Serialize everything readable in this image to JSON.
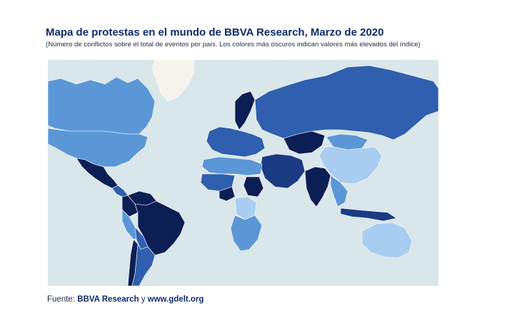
{
  "header": {
    "title": "Mapa de protestas en el mundo de BBVA Research, Marzo de 2020",
    "subtitle": "(Número de conflictos sobre el total de eventos por país. Los colores más oscuros indican valores más elevados del índice)"
  },
  "map": {
    "palette": {
      "ocean": "#d9e6ea",
      "no_data": "#f6f3ee",
      "level_1": "#a9cdf0",
      "level_2": "#5b97d6",
      "level_3": "#2f5fae",
      "level_4": "#1a3a82",
      "level_5": "#0c1f55"
    },
    "regions": [
      {
        "name": "greenland",
        "level": "no_data"
      },
      {
        "name": "canada",
        "level": "level_2"
      },
      {
        "name": "united-states",
        "level": "level_2"
      },
      {
        "name": "mexico",
        "level": "level_5"
      },
      {
        "name": "central-america",
        "level": "level_3"
      },
      {
        "name": "colombia",
        "level": "level_5"
      },
      {
        "name": "venezuela",
        "level": "level_5"
      },
      {
        "name": "brazil",
        "level": "level_5"
      },
      {
        "name": "peru",
        "level": "level_2"
      },
      {
        "name": "bolivia",
        "level": "level_3"
      },
      {
        "name": "chile",
        "level": "level_5"
      },
      {
        "name": "argentina",
        "level": "level_3"
      },
      {
        "name": "scandinavia",
        "level": "level_5"
      },
      {
        "name": "western-europe",
        "level": "level_3"
      },
      {
        "name": "russia",
        "level": "level_3"
      },
      {
        "name": "kazakhstan",
        "level": "level_5"
      },
      {
        "name": "mongolia",
        "level": "level_2"
      },
      {
        "name": "china",
        "level": "level_1"
      },
      {
        "name": "middle-east",
        "level": "level_4"
      },
      {
        "name": "india",
        "level": "level_5"
      },
      {
        "name": "southeast-asia",
        "level": "level_2"
      },
      {
        "name": "indonesia",
        "level": "level_4"
      },
      {
        "name": "australia",
        "level": "level_1"
      },
      {
        "name": "north-africa",
        "level": "level_2"
      },
      {
        "name": "sahel",
        "level": "level_3"
      },
      {
        "name": "nigeria",
        "level": "level_5"
      },
      {
        "name": "sudan",
        "level": "level_5"
      },
      {
        "name": "congo",
        "level": "level_1"
      },
      {
        "name": "southern-africa",
        "level": "level_2"
      }
    ]
  },
  "footer": {
    "source_prefix": "Fuente: ",
    "source_name": "BBVA Research",
    "source_conjunction": " y ",
    "source_site": "www.gdelt.org"
  }
}
